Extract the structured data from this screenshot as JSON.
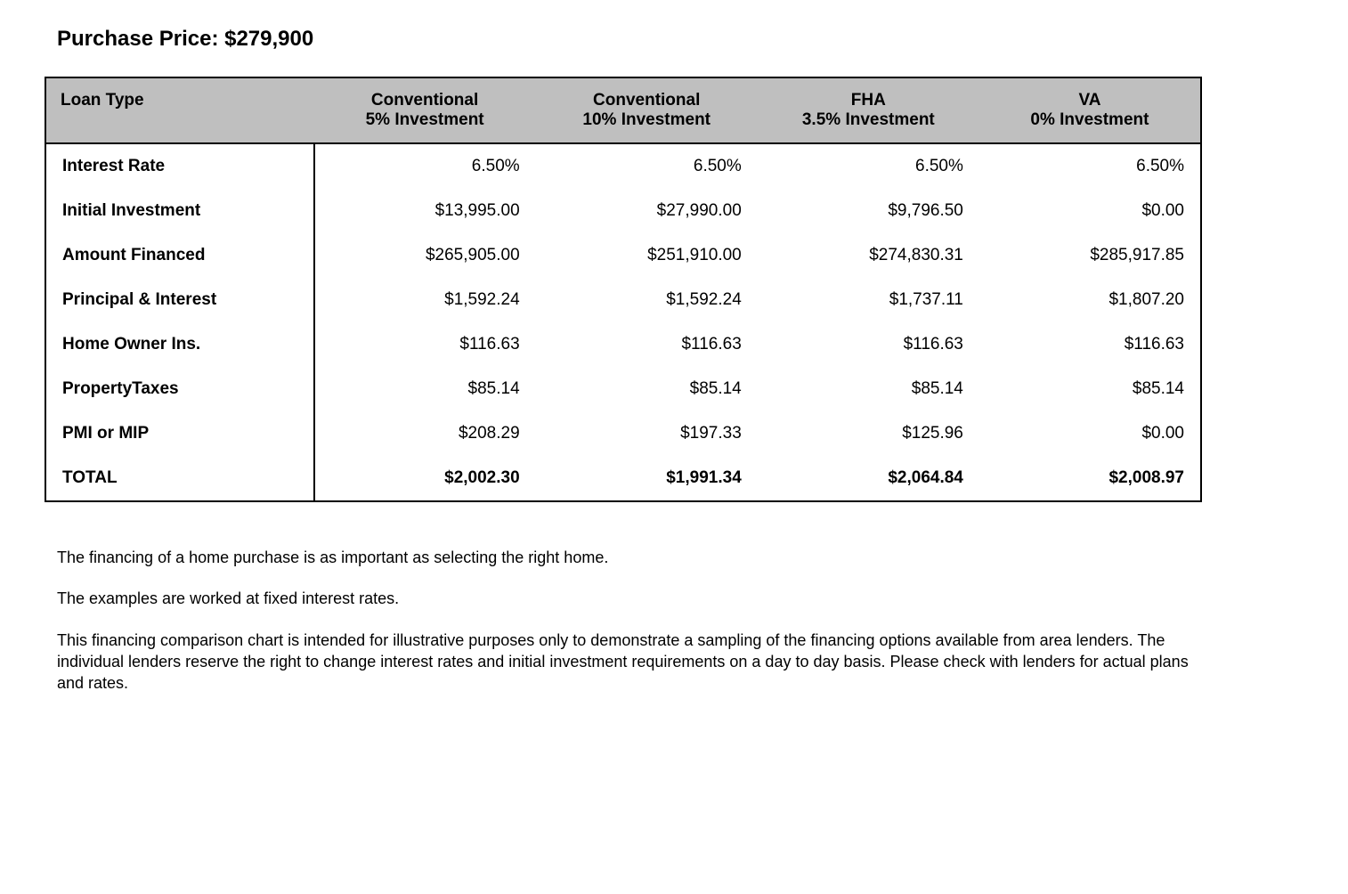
{
  "title": "Purchase Price: $279,900",
  "table": {
    "header_label": "Loan Type",
    "columns": [
      {
        "line1": "Conventional",
        "line2": "5% Investment"
      },
      {
        "line1": "Conventional",
        "line2": "10% Investment"
      },
      {
        "line1": "FHA",
        "line2": "3.5% Investment"
      },
      {
        "line1": "VA",
        "line2": "0% Investment"
      }
    ],
    "rows": [
      {
        "label": "Interest Rate",
        "values": [
          "6.50%",
          "6.50%",
          "6.50%",
          "6.50%"
        ]
      },
      {
        "label": "Initial Investment",
        "values": [
          "$13,995.00",
          "$27,990.00",
          "$9,796.50",
          "$0.00"
        ]
      },
      {
        "label": "Amount Financed",
        "values": [
          "$265,905.00",
          "$251,910.00",
          "$274,830.31",
          "$285,917.85"
        ]
      },
      {
        "label": "Principal & Interest",
        "values": [
          "$1,592.24",
          "$1,592.24",
          "$1,737.11",
          "$1,807.20"
        ]
      },
      {
        "label": "Home Owner Ins.",
        "values": [
          "$116.63",
          "$116.63",
          "$116.63",
          "$116.63"
        ]
      },
      {
        "label": "PropertyTaxes",
        "values": [
          "$85.14",
          "$85.14",
          "$85.14",
          "$85.14"
        ]
      },
      {
        "label": "PMI or MIP",
        "values": [
          "$208.29",
          "$197.33",
          "$125.96",
          "$0.00"
        ]
      }
    ],
    "total": {
      "label": "TOTAL",
      "values": [
        "$2,002.30",
        "$1,991.34",
        "$2,064.84",
        "$2,008.97"
      ]
    }
  },
  "notes": {
    "p1": "The financing of a home purchase is as important as selecting the right home.",
    "p2": "The examples are worked at fixed interest rates.",
    "p3": "This financing comparison chart is intended for illustrative purposes only to demonstrate a sampling of the financing options available from area lenders. The individual lenders reserve the right to change interest rates and initial investment requirements on a day to day basis. Please check with lenders for actual plans and rates."
  }
}
